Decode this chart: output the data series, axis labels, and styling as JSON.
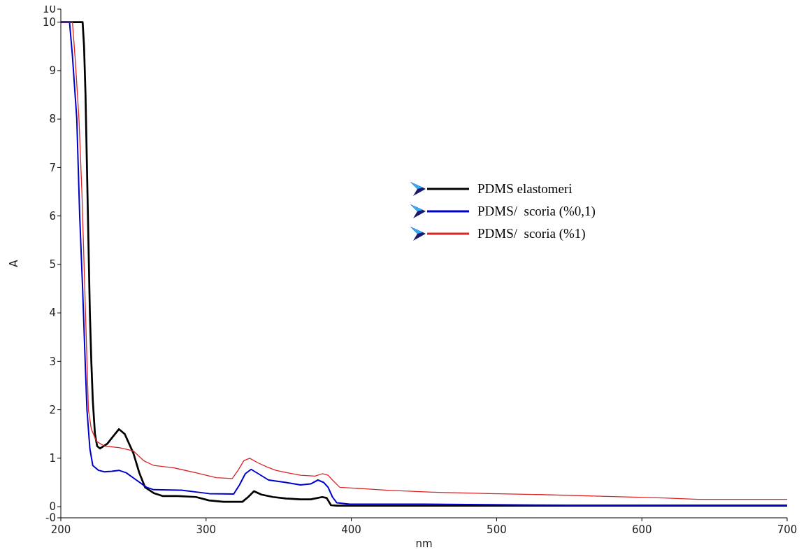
{
  "chart_data": {
    "type": "line",
    "xlabel": "nm",
    "ylabel": "A",
    "xlim": [
      200,
      700
    ],
    "xticks": [
      200,
      300,
      400,
      500,
      600,
      700
    ],
    "ylim": [
      -0.23,
      10.27
    ],
    "yticks": [
      {
        "value": -0.23,
        "label": "-0"
      },
      0,
      1,
      2,
      3,
      4,
      5,
      6,
      7,
      8,
      9,
      10,
      {
        "value": 10.27,
        "label": "10"
      }
    ],
    "grid": false,
    "legend": "right",
    "marker": "none",
    "line_style": "solid",
    "series": [
      {
        "name": "PDMS elastomeri",
        "color": "#000000",
        "x": [
          200,
          215,
          216,
          217,
          218,
          219,
          220,
          221,
          222,
          223.5,
          225,
          227,
          232,
          236,
          240,
          244,
          250,
          254,
          258,
          264,
          270,
          280,
          293,
          302,
          312,
          325,
          329,
          333,
          338,
          346,
          355,
          365,
          372,
          380,
          383,
          386,
          390,
          450,
          550,
          700
        ],
        "values": [
          10,
          10,
          9.5,
          8.5,
          7,
          5.5,
          4,
          3,
          2.2,
          1.5,
          1.25,
          1.2,
          1.3,
          1.45,
          1.6,
          1.5,
          1.1,
          0.7,
          0.4,
          0.28,
          0.22,
          0.22,
          0.2,
          0.13,
          0.1,
          0.1,
          0.2,
          0.32,
          0.25,
          0.2,
          0.17,
          0.15,
          0.15,
          0.2,
          0.18,
          0.03,
          0.02,
          0.02,
          0.02,
          0.02
        ]
      },
      {
        "name": "PDMS/  scoria (%0,1)",
        "color": "#0000cc",
        "x": [
          200,
          206,
          208,
          211,
          213,
          215,
          217,
          218,
          220,
          222,
          226,
          230,
          235,
          240,
          245,
          252,
          259,
          264,
          283,
          302,
          319,
          323,
          327,
          331,
          336,
          343,
          355,
          365,
          372,
          377,
          381,
          384,
          387,
          390,
          399,
          450,
          550,
          700
        ],
        "values": [
          10,
          10,
          9.3,
          8,
          6,
          4.5,
          2.8,
          2,
          1.2,
          0.85,
          0.75,
          0.72,
          0.73,
          0.75,
          0.7,
          0.55,
          0.4,
          0.35,
          0.34,
          0.27,
          0.26,
          0.45,
          0.68,
          0.77,
          0.68,
          0.55,
          0.5,
          0.45,
          0.47,
          0.55,
          0.5,
          0.4,
          0.2,
          0.08,
          0.05,
          0.05,
          0.03,
          0.03
        ]
      },
      {
        "name": "PDMS/  scoria (%1)",
        "color": "#dd2222",
        "x": [
          200,
          208,
          210,
          212.5,
          214.5,
          216.5,
          218,
          219,
          221,
          224.5,
          230,
          240,
          250,
          257,
          264,
          278,
          293,
          307,
          318,
          322,
          326,
          330,
          336,
          342,
          348,
          356,
          365,
          375,
          380,
          384,
          387,
          392,
          408,
          425,
          456,
          495,
          529,
          567,
          615,
          639,
          700
        ],
        "values": [
          10,
          10,
          9.2,
          8,
          6.5,
          4.5,
          3,
          2,
          1.6,
          1.35,
          1.25,
          1.22,
          1.15,
          0.95,
          0.85,
          0.8,
          0.7,
          0.6,
          0.58,
          0.75,
          0.95,
          1.0,
          0.9,
          0.82,
          0.75,
          0.7,
          0.65,
          0.63,
          0.68,
          0.65,
          0.55,
          0.4,
          0.37,
          0.34,
          0.3,
          0.27,
          0.25,
          0.22,
          0.18,
          0.15,
          0.15
        ]
      }
    ]
  }
}
